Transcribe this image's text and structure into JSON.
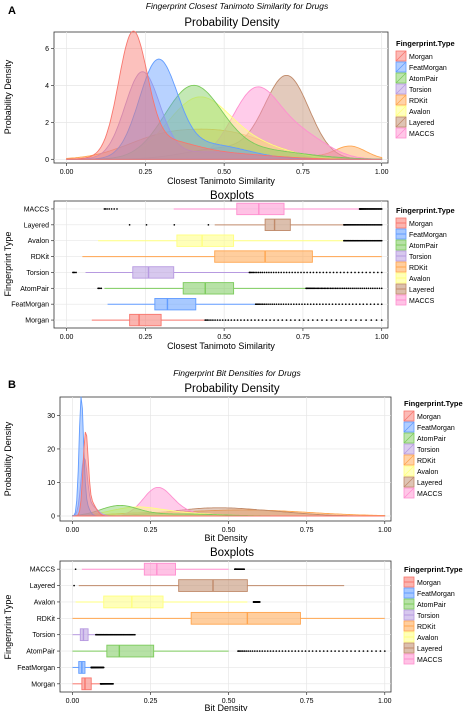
{
  "colors": {
    "Morgan": "#F8766D",
    "FeatMorgan": "#619CFF",
    "AtomPair": "#7CCB5C",
    "Torsion": "#B79AE0",
    "RDKit": "#FFA54F",
    "Avalon": "#FFFF7F",
    "Layered": "#C08A6A",
    "MACCS": "#FF8FD0",
    "panel_bg": "#FFFFFF",
    "grid": "#E6E6E6"
  },
  "panel_labels": {
    "a": "A",
    "b": "B"
  },
  "chart_data": [
    {
      "id": "a-density",
      "type": "area",
      "figure_title": "Fingerprint Closest Tanimoto Similarity for Drugs",
      "title": "Probability Density",
      "xlabel": "Closest Tanimoto Similarity",
      "ylabel": "Probability Density",
      "xlim": [
        -0.04,
        1.02
      ],
      "ylim": [
        -0.2,
        6.9
      ],
      "xticks": [
        0,
        0.25,
        0.5,
        0.75,
        1
      ],
      "xtick_labels": [
        "0.00",
        "0.25",
        "0.50",
        "0.75",
        "1.00"
      ],
      "yticks": [
        0,
        2,
        4,
        6
      ],
      "ytick_labels": [
        "0",
        "2",
        "4",
        "6"
      ],
      "legend": {
        "title": "Fingerprint.Type",
        "position": "right",
        "entries": [
          "Morgan",
          "FeatMorgan",
          "AtomPair",
          "Torsion",
          "RDKit",
          "Avalon",
          "Layered",
          "MACCS"
        ]
      },
      "series": [
        {
          "name": "Morgan",
          "components": [
            [
              0.21,
              0.045,
              6.3
            ],
            [
              0.3,
              0.1,
              0.9
            ],
            [
              0.5,
              0.15,
              0.3
            ]
          ]
        },
        {
          "name": "FeatMorgan",
          "components": [
            [
              0.29,
              0.06,
              5.1
            ],
            [
              0.45,
              0.12,
              0.8
            ]
          ]
        },
        {
          "name": "AtomPair",
          "components": [
            [
              0.4,
              0.09,
              3.8
            ],
            [
              0.6,
              0.15,
              0.5
            ]
          ]
        },
        {
          "name": "Torsion",
          "components": [
            [
              0.24,
              0.055,
              4.6
            ],
            [
              0.45,
              0.15,
              0.4
            ]
          ]
        },
        {
          "name": "RDKit",
          "components": [
            [
              0.3,
              0.12,
              1.1
            ],
            [
              0.52,
              0.13,
              1.3
            ],
            [
              0.9,
              0.05,
              0.7
            ]
          ]
        },
        {
          "name": "Avalon",
          "components": [
            [
              0.42,
              0.1,
              3.3
            ],
            [
              0.62,
              0.1,
              0.6
            ]
          ]
        },
        {
          "name": "Layered",
          "components": [
            [
              0.7,
              0.07,
              4.4
            ],
            [
              0.5,
              0.12,
              0.6
            ]
          ]
        },
        {
          "name": "MACCS",
          "components": [
            [
              0.6,
              0.075,
              3.7
            ],
            [
              0.75,
              0.08,
              1.2
            ]
          ]
        }
      ]
    },
    {
      "id": "a-box",
      "type": "boxplot",
      "title": "Boxplots",
      "xlabel": "Closest Tanimoto Similarity",
      "ylabel": "Fingerprint Type",
      "xlim": [
        -0.04,
        1.02
      ],
      "xticks": [
        0,
        0.25,
        0.5,
        0.75,
        1
      ],
      "xtick_labels": [
        "0.00",
        "0.25",
        "0.50",
        "0.75",
        "1.00"
      ],
      "legend": {
        "title": "Fingerprint.Type",
        "position": "right",
        "entries": [
          "Morgan",
          "FeatMorgan",
          "AtomPair",
          "Torsion",
          "RDKit",
          "Avalon",
          "Layered",
          "MACCS"
        ]
      },
      "categories": [
        "MACCS",
        "Layered",
        "Avalon",
        "RDKit",
        "Torsion",
        "AtomPair",
        "FeatMorgan",
        "Morgan"
      ],
      "boxes": [
        {
          "name": "MACCS",
          "q1": 0.54,
          "median": 0.61,
          "q3": 0.69,
          "wmin": 0.34,
          "wmax": 0.93,
          "out_lo": [
            0.12,
            0.16,
            0.2,
            0.22,
            0.26
          ],
          "out_hi": [
            0.93,
            1.0
          ]
        },
        {
          "name": "Layered",
          "q1": 0.63,
          "median": 0.66,
          "q3": 0.71,
          "wmin": 0.47,
          "wmax": 0.88,
          "out_lo": [
            0.2,
            0.45
          ],
          "out_hi": [
            0.88,
            1.0
          ]
        },
        {
          "name": "Avalon",
          "q1": 0.35,
          "median": 0.43,
          "q3": 0.53,
          "wmin": 0.1,
          "wmax": 0.88,
          "out_lo": [],
          "out_hi": [
            0.88,
            1.0
          ]
        },
        {
          "name": "RDKit",
          "q1": 0.47,
          "median": 0.63,
          "q3": 0.78,
          "wmin": 0.05,
          "wmax": 1.0,
          "out_lo": [],
          "out_hi": []
        },
        {
          "name": "Torsion",
          "q1": 0.21,
          "median": 0.26,
          "q3": 0.34,
          "wmin": 0.06,
          "wmax": 0.58,
          "out_lo": [
            0.02,
            0.03
          ],
          "out_hi": [
            0.58,
            1.0
          ]
        },
        {
          "name": "AtomPair",
          "q1": 0.37,
          "median": 0.44,
          "q3": 0.53,
          "wmin": 0.12,
          "wmax": 0.76,
          "out_lo": [
            0.1,
            0.11
          ],
          "out_hi": [
            0.76,
            1.0
          ]
        },
        {
          "name": "FeatMorgan",
          "q1": 0.28,
          "median": 0.32,
          "q3": 0.41,
          "wmin": 0.13,
          "wmax": 0.6,
          "out_lo": [],
          "out_hi": [
            0.6,
            1.0
          ]
        },
        {
          "name": "Morgan",
          "q1": 0.2,
          "median": 0.23,
          "q3": 0.3,
          "wmin": 0.08,
          "wmax": 0.44,
          "out_lo": [],
          "out_hi": [
            0.44,
            1.0
          ]
        }
      ]
    },
    {
      "id": "b-density",
      "type": "area",
      "figure_title": "Fingerprint Bit Densities for Drugs",
      "title": "Probability Density",
      "xlabel": "Bit Density",
      "ylabel": "Probability Density",
      "xlim": [
        -0.04,
        1.02
      ],
      "ylim": [
        -1.5,
        35.5
      ],
      "xticks": [
        0,
        0.25,
        0.5,
        0.75,
        1
      ],
      "xtick_labels": [
        "0.00",
        "0.25",
        "0.50",
        "0.75",
        "1.00"
      ],
      "yticks": [
        0,
        10,
        20,
        30
      ],
      "ytick_labels": [
        "0",
        "10",
        "20",
        "30"
      ],
      "legend": {
        "title": "Fingerprint.Type",
        "position": "right",
        "entries": [
          "Morgan",
          "FeatMorgan",
          "AtomPair",
          "Torsion",
          "RDKit",
          "Avalon",
          "Layered",
          "MACCS"
        ]
      },
      "series": [
        {
          "name": "Morgan",
          "components": [
            [
              0.042,
              0.008,
              23.5
            ],
            [
              0.06,
              0.015,
              4.0
            ]
          ]
        },
        {
          "name": "FeatMorgan",
          "components": [
            [
              0.028,
              0.007,
              33.5
            ],
            [
              0.04,
              0.012,
              4.0
            ]
          ]
        },
        {
          "name": "AtomPair",
          "components": [
            [
              0.15,
              0.06,
              3.0
            ],
            [
              0.35,
              0.12,
              0.6
            ]
          ]
        },
        {
          "name": "Torsion",
          "components": [
            [
              0.037,
              0.01,
              16.0
            ],
            [
              0.06,
              0.02,
              3.0
            ]
          ]
        },
        {
          "name": "RDKit",
          "components": [
            [
              0.55,
              0.2,
              1.8
            ],
            [
              0.2,
              0.1,
              0.5
            ]
          ]
        },
        {
          "name": "Avalon",
          "components": [
            [
              0.2,
              0.08,
              2.4
            ],
            [
              0.35,
              0.1,
              0.8
            ]
          ]
        },
        {
          "name": "Layered",
          "components": [
            [
              0.46,
              0.14,
              2.4
            ],
            [
              0.68,
              0.1,
              0.5
            ]
          ]
        },
        {
          "name": "MACCS",
          "components": [
            [
              0.27,
              0.045,
              7.6
            ],
            [
              0.33,
              0.06,
              1.5
            ]
          ]
        }
      ]
    },
    {
      "id": "b-box",
      "type": "boxplot",
      "title": "Boxplots",
      "xlabel": "Bit Density",
      "ylabel": "Fingerprint Type",
      "xlim": [
        -0.04,
        1.02
      ],
      "xticks": [
        0,
        0.25,
        0.5,
        0.75,
        1
      ],
      "xtick_labels": [
        "0.00",
        "0.25",
        "0.50",
        "0.75",
        "1.00"
      ],
      "legend": {
        "title": "Fingerprint.Type",
        "position": "right",
        "entries": [
          "Morgan",
          "FeatMorgan",
          "AtomPair",
          "Torsion",
          "RDKit",
          "Avalon",
          "Layered",
          "MACCS"
        ]
      },
      "categories": [
        "MACCS",
        "Layered",
        "Avalon",
        "RDKit",
        "Torsion",
        "AtomPair",
        "FeatMorgan",
        "Morgan"
      ],
      "boxes": [
        {
          "name": "MACCS",
          "q1": 0.23,
          "median": 0.27,
          "q3": 0.33,
          "wmin": 0.03,
          "wmax": 0.5,
          "out_lo": [
            0.01
          ],
          "out_hi": [
            0.52,
            0.55
          ]
        },
        {
          "name": "Layered",
          "q1": 0.34,
          "median": 0.45,
          "q3": 0.56,
          "wmin": 0.02,
          "wmax": 0.87,
          "out_lo": [
            0.005
          ],
          "out_hi": []
        },
        {
          "name": "Avalon",
          "q1": 0.1,
          "median": 0.19,
          "q3": 0.29,
          "wmin": 0.01,
          "wmax": 0.56,
          "out_lo": [],
          "out_hi": [
            0.58,
            0.6
          ]
        },
        {
          "name": "RDKit",
          "q1": 0.38,
          "median": 0.56,
          "q3": 0.73,
          "wmin": 0.0,
          "wmax": 1.0,
          "out_lo": [],
          "out_hi": []
        },
        {
          "name": "Torsion",
          "q1": 0.025,
          "median": 0.035,
          "q3": 0.05,
          "wmin": 0.0,
          "wmax": 0.075,
          "out_lo": [],
          "out_hi": [
            0.075,
            0.2
          ]
        },
        {
          "name": "AtomPair",
          "q1": 0.11,
          "median": 0.15,
          "q3": 0.26,
          "wmin": 0.0,
          "wmax": 0.5,
          "out_lo": [],
          "out_hi": [
            0.53,
            1.0
          ]
        },
        {
          "name": "FeatMorgan",
          "q1": 0.02,
          "median": 0.03,
          "q3": 0.04,
          "wmin": 0.0,
          "wmax": 0.06,
          "out_lo": [],
          "out_hi": [
            0.06,
            0.1
          ]
        },
        {
          "name": "Morgan",
          "q1": 0.03,
          "median": 0.04,
          "q3": 0.06,
          "wmin": 0.0,
          "wmax": 0.09,
          "out_lo": [],
          "out_hi": [
            0.09,
            0.13
          ]
        }
      ]
    }
  ]
}
